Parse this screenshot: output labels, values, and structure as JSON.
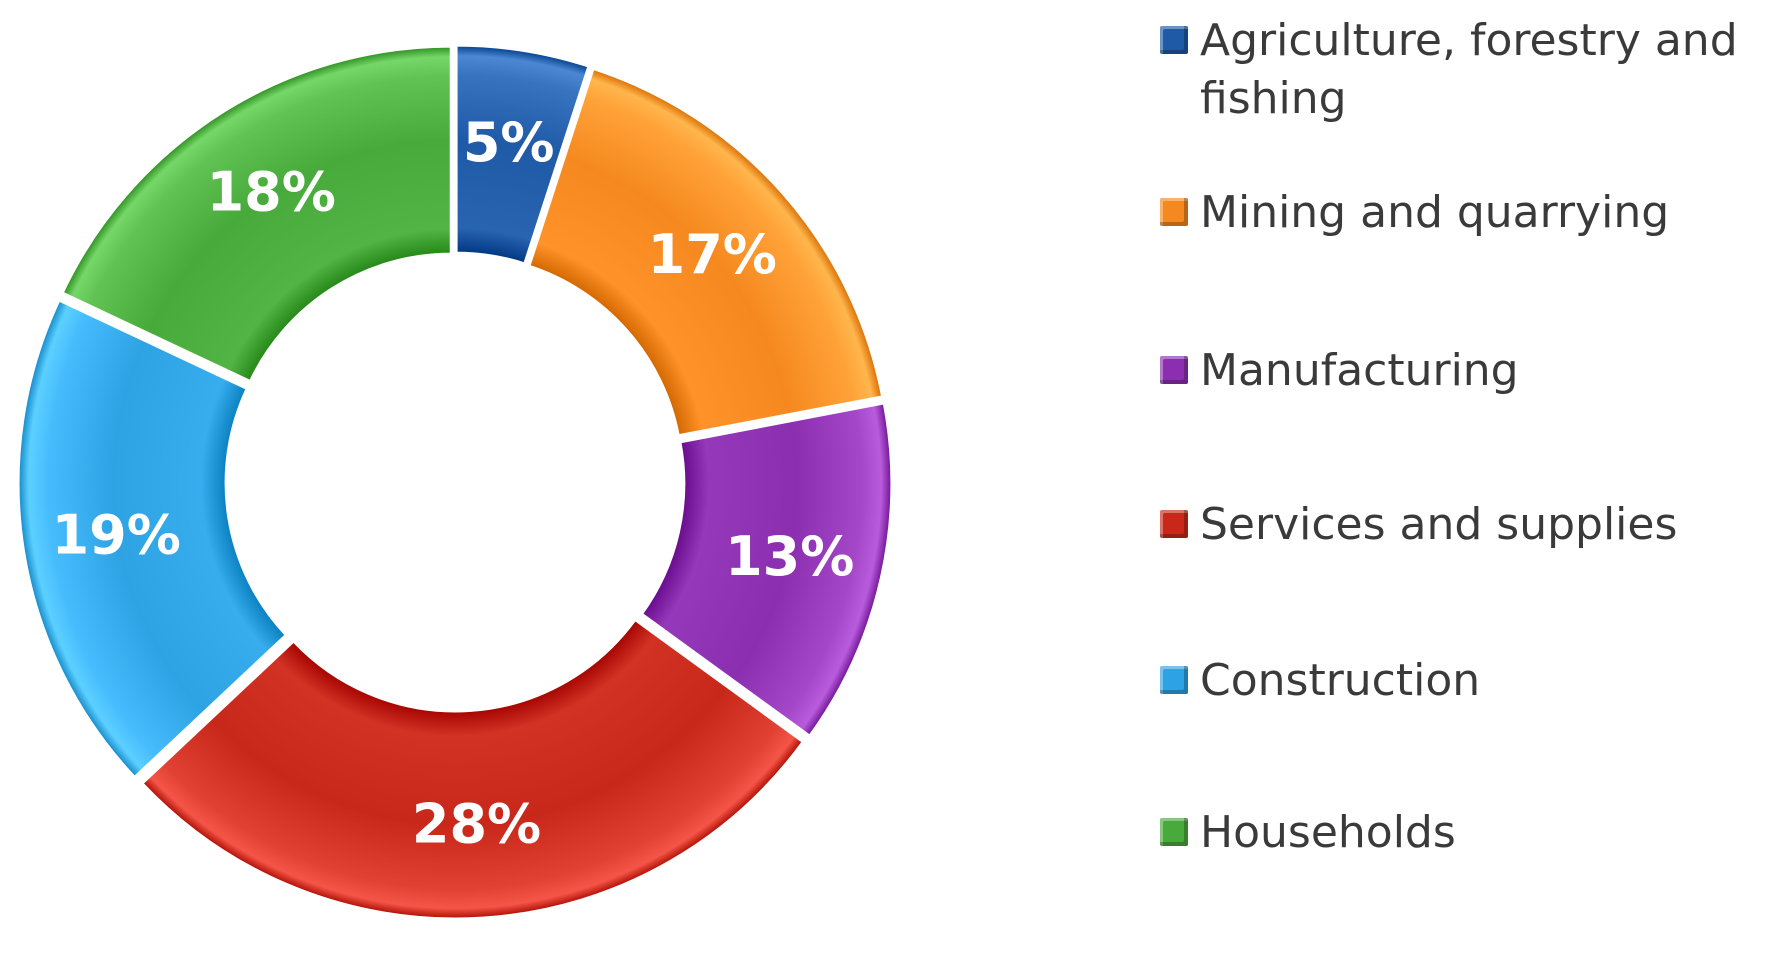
{
  "chart_data": {
    "type": "pie",
    "variant": "donut",
    "categories": [
      "Agriculture, forestry and fishing",
      "Mining and quarrying",
      "Manufacturing",
      "Services and supplies",
      "Construction",
      "Households"
    ],
    "values": [
      5,
      17,
      13,
      28,
      19,
      18
    ],
    "value_labels": [
      "5%",
      "17%",
      "13%",
      "28%",
      "19%",
      "18%"
    ],
    "colors": [
      "#1f5aa6",
      "#f5891f",
      "#8b2fb0",
      "#c8281a",
      "#2ea3e4",
      "#48aa3a"
    ],
    "legend_position": "right",
    "title": ""
  }
}
